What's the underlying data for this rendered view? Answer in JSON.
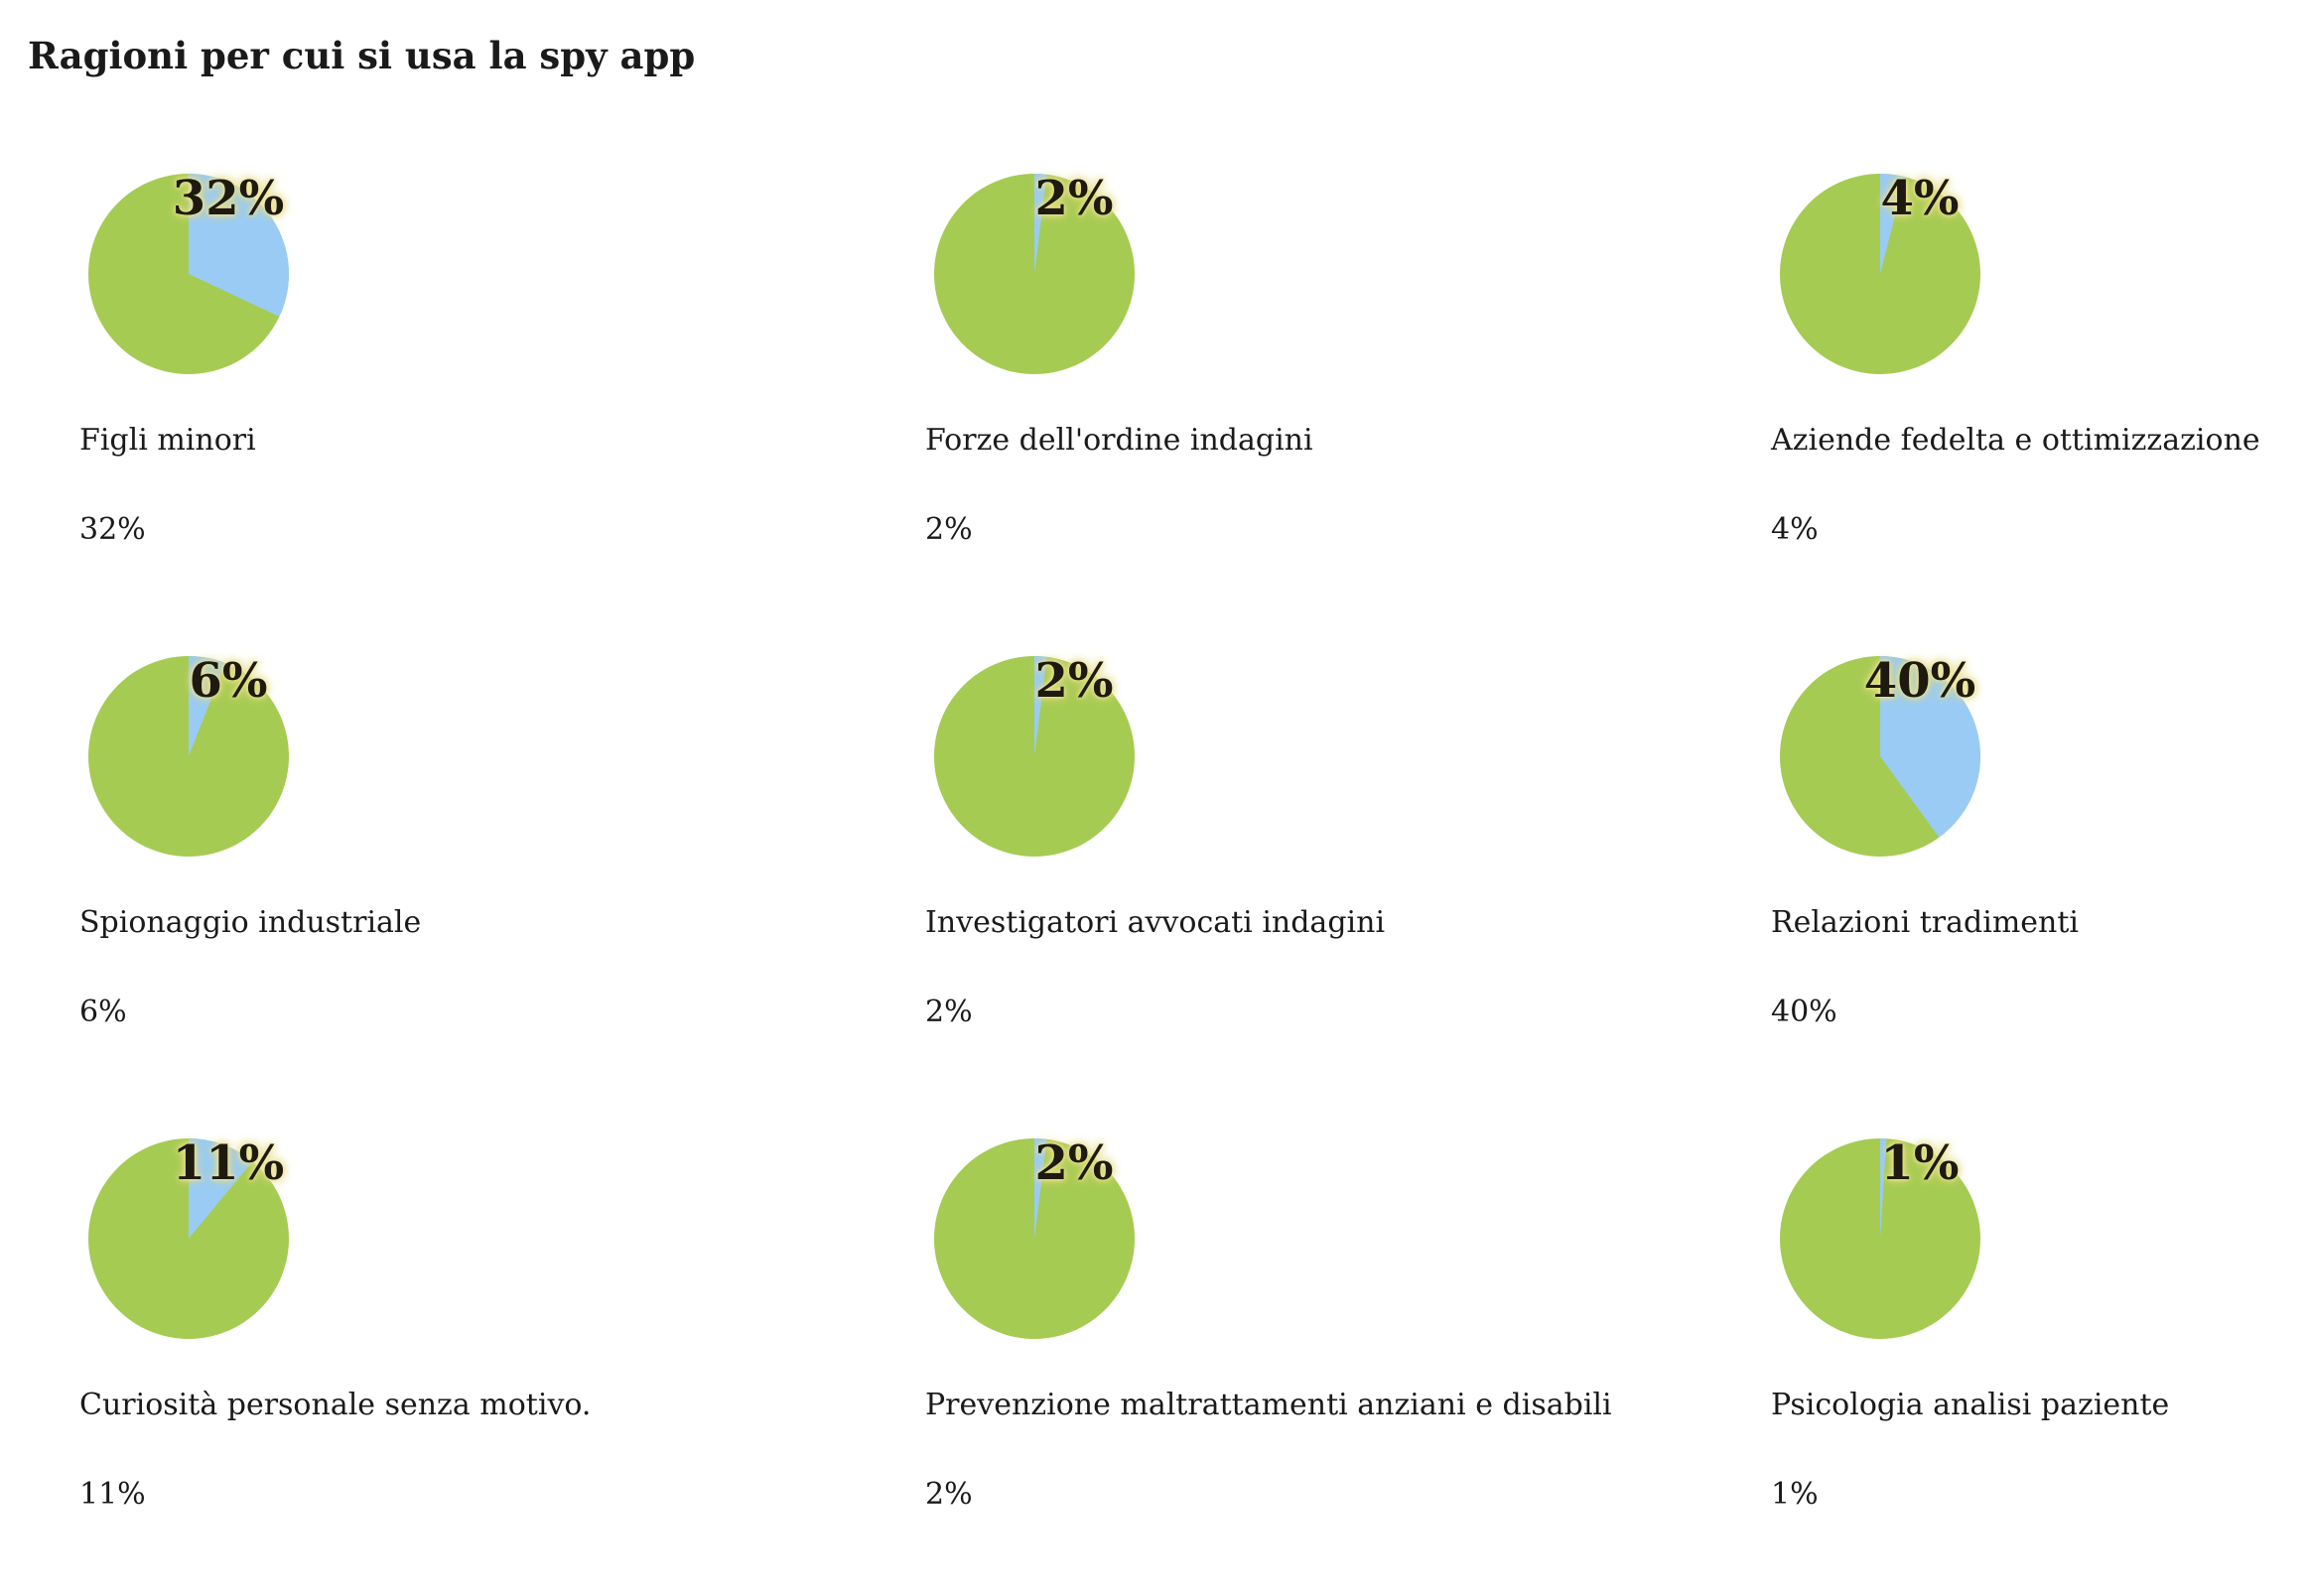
{
  "page": {
    "title": "Ragioni per cui si usa la spy app"
  },
  "colors": {
    "slice": "#99cbf5",
    "remainder": "#a5cb52"
  },
  "chart_data": [
    {
      "type": "pie",
      "label": "Figli minori",
      "value": 32,
      "display": "32%"
    },
    {
      "type": "pie",
      "label": "Forze dell'ordine indagini",
      "value": 2,
      "display": "2%"
    },
    {
      "type": "pie",
      "label": "Aziende fedelta e ottimizzazione",
      "value": 4,
      "display": "4%"
    },
    {
      "type": "pie",
      "label": "Spionaggio industriale",
      "value": 6,
      "display": "6%"
    },
    {
      "type": "pie",
      "label": "Investigatori avvocati indagini",
      "value": 2,
      "display": "2%"
    },
    {
      "type": "pie",
      "label": "Relazioni tradimenti",
      "value": 40,
      "display": "40%"
    },
    {
      "type": "pie",
      "label": "Curiosità personale senza motivo.",
      "value": 11,
      "display": "11%"
    },
    {
      "type": "pie",
      "label": "Prevenzione maltrattamenti anziani e disabili",
      "value": 2,
      "display": "2%"
    },
    {
      "type": "pie",
      "label": "Psicologia analisi paziente",
      "value": 1,
      "display": "1%"
    }
  ]
}
